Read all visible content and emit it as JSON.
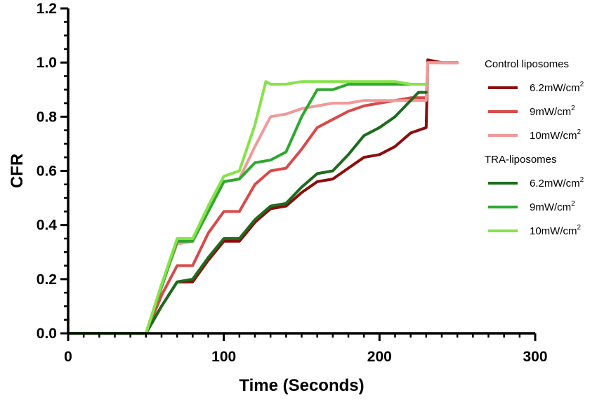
{
  "chart_data": {
    "type": "line",
    "xlabel": "Time (Seconds)",
    "ylabel": "CFR",
    "xlim": [
      0,
      300
    ],
    "ylim": [
      0,
      1.2
    ],
    "x_ticks": [
      "0",
      "100",
      "200",
      "300"
    ],
    "y_ticks": [
      "0.0",
      "0.2",
      "0.4",
      "0.6",
      "0.8",
      "1.0",
      "1.2"
    ],
    "grid": false,
    "legend_position": "right",
    "legend_groups": [
      {
        "title": "Control liposomes",
        "entries": [
          0,
          1,
          2
        ]
      },
      {
        "title": "TRA-liposomes",
        "entries": [
          3,
          4,
          5
        ]
      }
    ],
    "series": [
      {
        "name": "6.2mW/cm²",
        "label_base": "6.2mW/cm",
        "label_sup": "2",
        "group": "Control liposomes",
        "color": "#8b0d0d",
        "points": [
          [
            0,
            0
          ],
          [
            50,
            0
          ],
          [
            60,
            0.1
          ],
          [
            70,
            0.19
          ],
          [
            80,
            0.19
          ],
          [
            90,
            0.27
          ],
          [
            100,
            0.34
          ],
          [
            110,
            0.34
          ],
          [
            120,
            0.41
          ],
          [
            130,
            0.46
          ],
          [
            140,
            0.47
          ],
          [
            150,
            0.52
          ],
          [
            160,
            0.56
          ],
          [
            170,
            0.57
          ],
          [
            180,
            0.61
          ],
          [
            190,
            0.65
          ],
          [
            200,
            0.66
          ],
          [
            210,
            0.69
          ],
          [
            220,
            0.74
          ],
          [
            230,
            0.76
          ],
          [
            231,
            1.01
          ],
          [
            240,
            1.0
          ],
          [
            250,
            1.0
          ]
        ]
      },
      {
        "name": "9mW/cm²",
        "label_base": "9mW/cm",
        "label_sup": "2",
        "group": "Control liposomes",
        "color": "#d94a4a",
        "points": [
          [
            0,
            0
          ],
          [
            50,
            0
          ],
          [
            60,
            0.14
          ],
          [
            70,
            0.25
          ],
          [
            80,
            0.25
          ],
          [
            90,
            0.37
          ],
          [
            100,
            0.45
          ],
          [
            110,
            0.45
          ],
          [
            120,
            0.55
          ],
          [
            130,
            0.6
          ],
          [
            140,
            0.61
          ],
          [
            150,
            0.68
          ],
          [
            160,
            0.76
          ],
          [
            170,
            0.79
          ],
          [
            180,
            0.82
          ],
          [
            190,
            0.84
          ],
          [
            200,
            0.85
          ],
          [
            210,
            0.86
          ],
          [
            220,
            0.87
          ],
          [
            230,
            0.87
          ],
          [
            231,
            1.0
          ],
          [
            240,
            1.0
          ],
          [
            250,
            1.0
          ]
        ]
      },
      {
        "name": "10mW/cm²",
        "label_base": "10mW/cm",
        "label_sup": "2",
        "group": "Control liposomes",
        "color": "#f09a9a",
        "points": [
          [
            0,
            0
          ],
          [
            50,
            0
          ],
          [
            60,
            0.18
          ],
          [
            70,
            0.33
          ],
          [
            80,
            0.34
          ],
          [
            90,
            0.46
          ],
          [
            100,
            0.56
          ],
          [
            110,
            0.57
          ],
          [
            120,
            0.69
          ],
          [
            130,
            0.8
          ],
          [
            140,
            0.81
          ],
          [
            150,
            0.83
          ],
          [
            160,
            0.84
          ],
          [
            170,
            0.85
          ],
          [
            180,
            0.85
          ],
          [
            190,
            0.86
          ],
          [
            200,
            0.86
          ],
          [
            210,
            0.86
          ],
          [
            220,
            0.86
          ],
          [
            230,
            0.86
          ],
          [
            231,
            1.0
          ],
          [
            240,
            1.0
          ],
          [
            250,
            1.0
          ]
        ]
      },
      {
        "name": "6.2mW/cm²",
        "label_base": "6.2mW/cm",
        "label_sup": "2",
        "group": "TRA-liposomes",
        "color": "#1e6b1e",
        "points": [
          [
            0,
            0
          ],
          [
            50,
            0
          ],
          [
            60,
            0.1
          ],
          [
            70,
            0.19
          ],
          [
            80,
            0.2
          ],
          [
            90,
            0.28
          ],
          [
            100,
            0.35
          ],
          [
            110,
            0.35
          ],
          [
            120,
            0.42
          ],
          [
            130,
            0.47
          ],
          [
            140,
            0.48
          ],
          [
            150,
            0.54
          ],
          [
            160,
            0.59
          ],
          [
            170,
            0.6
          ],
          [
            180,
            0.66
          ],
          [
            190,
            0.73
          ],
          [
            200,
            0.76
          ],
          [
            210,
            0.8
          ],
          [
            220,
            0.86
          ],
          [
            225,
            0.89
          ],
          [
            230,
            0.89
          ]
        ]
      },
      {
        "name": "9mW/cm²",
        "label_base": "9mW/cm",
        "label_sup": "2",
        "group": "TRA-liposomes",
        "color": "#2ea82e",
        "points": [
          [
            0,
            0
          ],
          [
            50,
            0
          ],
          [
            60,
            0.17
          ],
          [
            70,
            0.34
          ],
          [
            80,
            0.34
          ],
          [
            90,
            0.45
          ],
          [
            100,
            0.56
          ],
          [
            110,
            0.57
          ],
          [
            120,
            0.63
          ],
          [
            130,
            0.64
          ],
          [
            140,
            0.67
          ],
          [
            150,
            0.8
          ],
          [
            160,
            0.9
          ],
          [
            170,
            0.9
          ],
          [
            180,
            0.92
          ],
          [
            190,
            0.92
          ],
          [
            200,
            0.92
          ],
          [
            210,
            0.92
          ],
          [
            220,
            0.92
          ],
          [
            230,
            0.92
          ]
        ]
      },
      {
        "name": "10mW/cm²",
        "label_base": "10mW/cm",
        "label_sup": "2",
        "group": "TRA-liposomes",
        "color": "#86e34a",
        "points": [
          [
            0,
            0
          ],
          [
            50,
            0
          ],
          [
            60,
            0.18
          ],
          [
            70,
            0.35
          ],
          [
            80,
            0.35
          ],
          [
            90,
            0.47
          ],
          [
            100,
            0.58
          ],
          [
            110,
            0.6
          ],
          [
            120,
            0.77
          ],
          [
            127,
            0.93
          ],
          [
            130,
            0.92
          ],
          [
            140,
            0.92
          ],
          [
            150,
            0.93
          ],
          [
            160,
            0.93
          ],
          [
            170,
            0.93
          ],
          [
            180,
            0.93
          ],
          [
            190,
            0.93
          ],
          [
            200,
            0.93
          ],
          [
            210,
            0.93
          ],
          [
            220,
            0.92
          ],
          [
            230,
            0.92
          ]
        ]
      }
    ]
  }
}
